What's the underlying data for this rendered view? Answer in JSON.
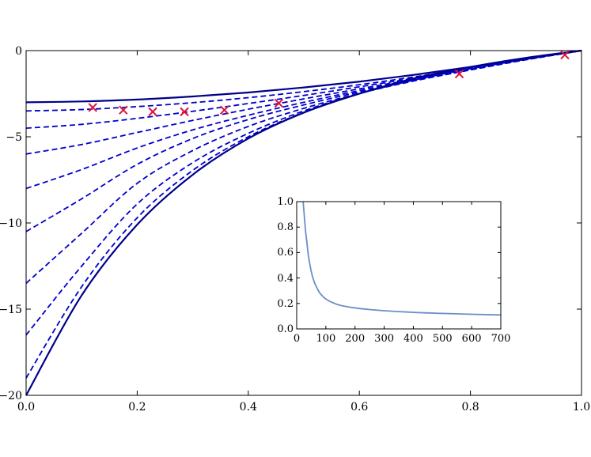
{
  "chart_data": [
    {
      "type": "line",
      "title": "",
      "xlabel": "",
      "ylabel": "",
      "xlim": [
        0.0,
        1.0
      ],
      "ylim": [
        -20,
        0
      ],
      "x_ticks": [
        0.0,
        0.2,
        0.4,
        0.6,
        0.8,
        1.0
      ],
      "x_tick_labels": [
        "0.0",
        "0.2",
        "0.4",
        "0.6",
        "0.8",
        "1.0"
      ],
      "y_ticks": [
        0,
        -5,
        -10,
        -15,
        -20
      ],
      "y_tick_labels": [
        "0",
        "−5",
        "−10",
        "−15",
        "−20"
      ],
      "grid": false,
      "legend": "none",
      "colors": {
        "solid_curves": "#00008b",
        "dashed_curves": "#0000cd",
        "markers": "#dc143c"
      },
      "series": [
        {
          "style": "solid",
          "x": [
            0.0,
            0.1,
            0.2,
            0.3,
            0.4,
            0.5,
            0.6,
            0.7,
            0.8,
            0.9,
            1.0
          ],
          "values": [
            -3.0,
            -2.95,
            -2.84,
            -2.66,
            -2.43,
            -2.14,
            -1.8,
            -1.4,
            -0.95,
            -0.46,
            0.0
          ]
        },
        {
          "style": "solid",
          "x": [
            0.0,
            0.1,
            0.2,
            0.3,
            0.4,
            0.5,
            0.6,
            0.7,
            0.8,
            0.9,
            1.0
          ],
          "values": [
            -20.0,
            -14.2,
            -10.1,
            -7.2,
            -5.1,
            -3.6,
            -2.5,
            -1.6,
            -0.95,
            -0.42,
            0.0
          ]
        },
        {
          "style": "dashed",
          "x": [
            0.0,
            0.1,
            0.2,
            0.3,
            0.4,
            0.5,
            0.6,
            0.7,
            0.8,
            0.9,
            1.0
          ],
          "values": [
            -3.5,
            -3.42,
            -3.25,
            -3.02,
            -2.73,
            -2.38,
            -1.98,
            -1.52,
            -1.01,
            -0.48,
            0.0
          ]
        },
        {
          "style": "dashed",
          "x": [
            0.0,
            0.1,
            0.2,
            0.3,
            0.4,
            0.5,
            0.6,
            0.7,
            0.8,
            0.9,
            1.0
          ],
          "values": [
            -4.5,
            -4.28,
            -3.93,
            -3.52,
            -3.07,
            -2.6,
            -2.1,
            -1.59,
            -1.05,
            -0.5,
            0.0
          ]
        },
        {
          "style": "dashed",
          "x": [
            0.0,
            0.1,
            0.2,
            0.3,
            0.4,
            0.5,
            0.6,
            0.7,
            0.8,
            0.9,
            1.0
          ],
          "values": [
            -6.0,
            -5.45,
            -4.75,
            -4.05,
            -3.4,
            -2.8,
            -2.22,
            -1.65,
            -1.08,
            -0.52,
            0.0
          ]
        },
        {
          "style": "dashed",
          "x": [
            0.0,
            0.1,
            0.2,
            0.3,
            0.4,
            0.5,
            0.6,
            0.7,
            0.8,
            0.9,
            1.0
          ],
          "values": [
            -8.0,
            -6.9,
            -5.65,
            -4.6,
            -3.75,
            -3.0,
            -2.32,
            -1.7,
            -1.1,
            -0.52,
            0.0
          ]
        },
        {
          "style": "dashed",
          "x": [
            0.0,
            0.1,
            0.2,
            0.3,
            0.4,
            0.5,
            0.6,
            0.7,
            0.8,
            0.9,
            1.0
          ],
          "values": [
            -10.5,
            -8.6,
            -6.6,
            -5.1,
            -4.0,
            -3.15,
            -2.4,
            -1.73,
            -1.12,
            -0.53,
            0.0
          ]
        },
        {
          "style": "dashed",
          "x": [
            0.0,
            0.1,
            0.2,
            0.3,
            0.4,
            0.5,
            0.6,
            0.7,
            0.8,
            0.9,
            1.0
          ],
          "values": [
            -13.5,
            -10.6,
            -7.7,
            -5.8,
            -4.4,
            -3.35,
            -2.48,
            -1.75,
            -1.12,
            -0.53,
            0.0
          ]
        },
        {
          "style": "dashed",
          "x": [
            0.0,
            0.1,
            0.2,
            0.3,
            0.4,
            0.5,
            0.6,
            0.7,
            0.8,
            0.9,
            1.0
          ],
          "values": [
            -16.5,
            -12.5,
            -8.9,
            -6.5,
            -4.8,
            -3.5,
            -2.5,
            -1.7,
            -1.05,
            -0.49,
            0.0
          ]
        },
        {
          "style": "dashed",
          "x": [
            0.0,
            0.1,
            0.2,
            0.3,
            0.4,
            0.5,
            0.6,
            0.7,
            0.8,
            0.9,
            1.0
          ],
          "values": [
            -19.0,
            -13.7,
            -9.7,
            -6.95,
            -5.0,
            -3.58,
            -2.5,
            -1.65,
            -0.98,
            -0.44,
            0.0
          ]
        },
        {
          "style": "markers",
          "marker": "x",
          "x": [
            0.12,
            0.175,
            0.228,
            0.285,
            0.357,
            0.455,
            0.78,
            0.97
          ],
          "values": [
            -3.3,
            -3.45,
            -3.55,
            -3.55,
            -3.45,
            -3.05,
            -1.35,
            -0.25
          ]
        }
      ]
    },
    {
      "type": "line",
      "title": "",
      "xlabel": "",
      "ylabel": "",
      "xlim": [
        0,
        700
      ],
      "ylim": [
        0.0,
        1.0
      ],
      "x_ticks": [
        0,
        100,
        200,
        300,
        400,
        500,
        600,
        700
      ],
      "x_tick_labels": [
        "0",
        "100",
        "200",
        "300",
        "400",
        "500",
        "600",
        "700"
      ],
      "y_ticks": [
        0.0,
        0.2,
        0.4,
        0.6,
        0.8,
        1.0
      ],
      "y_tick_labels": [
        "0.0",
        "0.2",
        "0.4",
        "0.6",
        "0.8",
        "1.0"
      ],
      "grid": false,
      "legend": "none",
      "colors": {
        "line": "#6a8fc8"
      },
      "series": [
        {
          "x": [
            22,
            25,
            30,
            35,
            40,
            50,
            60,
            70,
            80,
            100,
            125,
            150,
            200,
            250,
            300,
            400,
            500,
            600,
            700
          ],
          "values": [
            1.0,
            0.92,
            0.78,
            0.68,
            0.58,
            0.45,
            0.37,
            0.32,
            0.28,
            0.235,
            0.205,
            0.185,
            0.165,
            0.152,
            0.143,
            0.13,
            0.122,
            0.115,
            0.11
          ]
        }
      ]
    }
  ]
}
